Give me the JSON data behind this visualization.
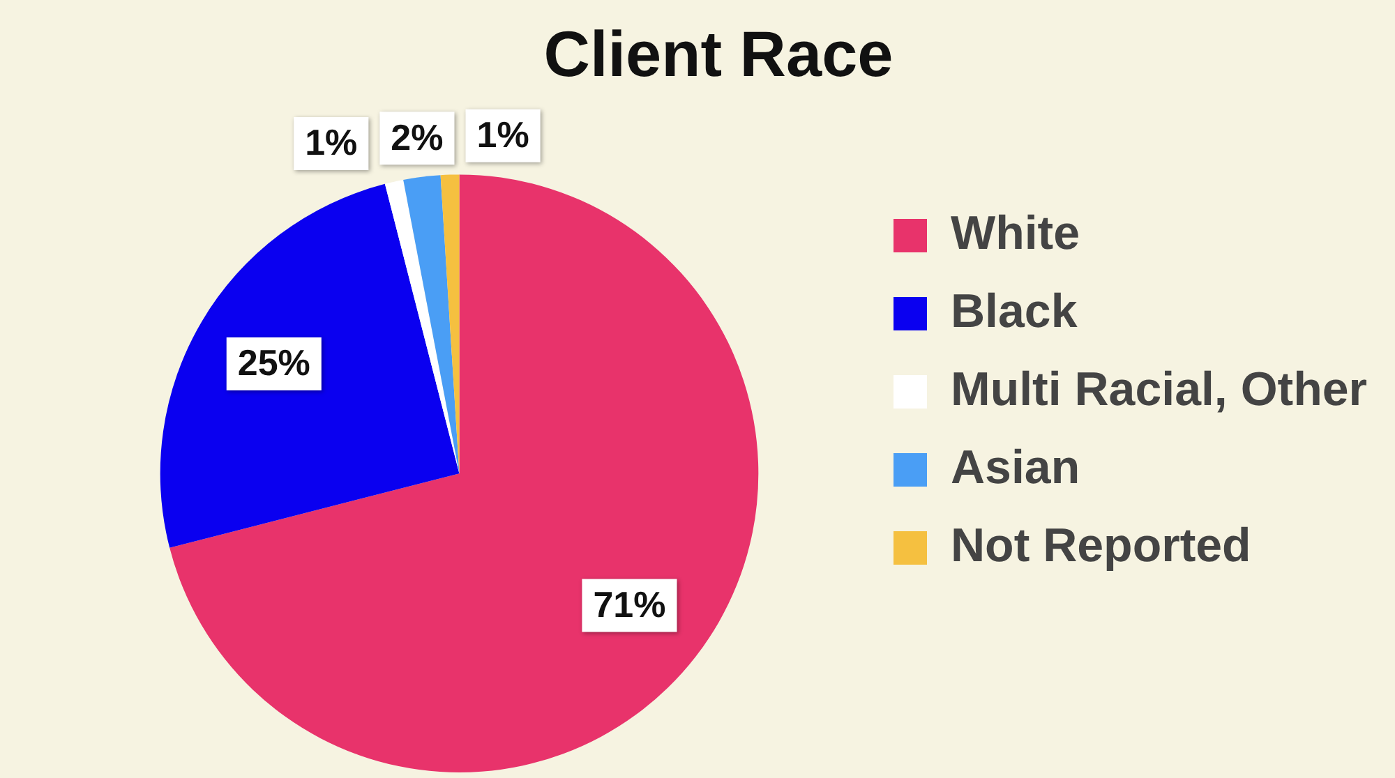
{
  "chart_data": {
    "type": "pie",
    "title": "Client Race",
    "categories": [
      "White",
      "Black",
      "Multi Racial, Other",
      "Asian",
      "Not Reported"
    ],
    "values": [
      71,
      25,
      1,
      2,
      1
    ],
    "colors": [
      "#e8336b",
      "#0a00f0",
      "#ffffff",
      "#4a9ef5",
      "#f5c040"
    ],
    "value_labels": [
      "71%",
      "25%",
      "1%",
      "2%",
      "1%"
    ],
    "legend": "right"
  }
}
